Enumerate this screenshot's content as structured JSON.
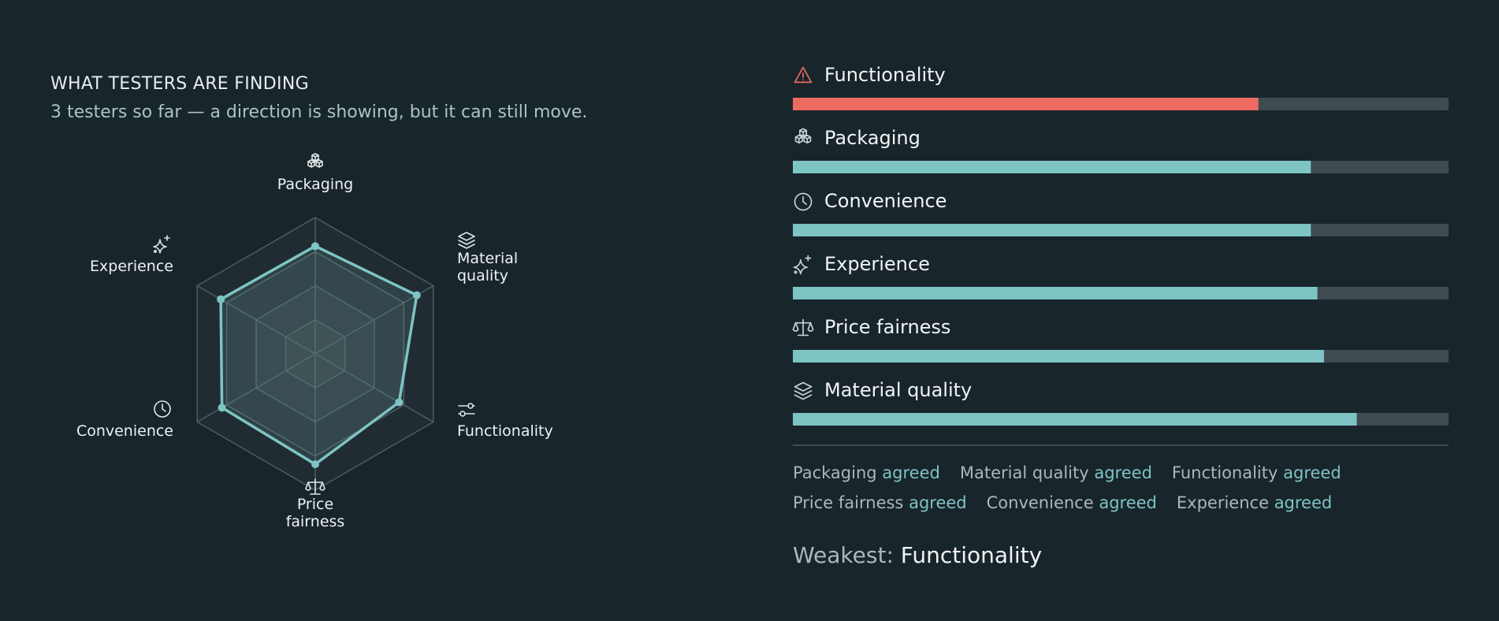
{
  "header": {
    "title": "WHAT TESTERS ARE FINDING",
    "subtitle": "3 testers so far — a direction is showing, but it can still move."
  },
  "chart_data": [
    {
      "type": "radar",
      "categories": [
        "Packaging",
        "Material quality",
        "Functionality",
        "Price fairness",
        "Convenience",
        "Experience"
      ],
      "values": [
        79,
        86,
        71,
        81,
        79,
        80
      ],
      "color": "#7ec4c4",
      "rlim": [
        0,
        100
      ],
      "rticks": [
        25,
        50,
        75,
        100
      ]
    },
    {
      "type": "hbar",
      "categories": [
        "Functionality",
        "Packaging",
        "Convenience",
        "Experience",
        "Price fairness",
        "Material quality"
      ],
      "values": [
        71,
        79,
        79,
        80,
        81,
        86
      ],
      "colors": [
        "#ee6b62",
        "#7ec4c4",
        "#7ec4c4",
        "#7ec4c4",
        "#7ec4c4",
        "#7ec4c4"
      ],
      "track_color": "#3e4b50",
      "xlim": [
        0,
        100
      ]
    }
  ],
  "agreement": [
    {
      "name": "Packaging",
      "status": "agreed"
    },
    {
      "name": "Material quality",
      "status": "agreed"
    },
    {
      "name": "Functionality",
      "status": "agreed"
    },
    {
      "name": "Price fairness",
      "status": "agreed"
    },
    {
      "name": "Convenience",
      "status": "agreed"
    },
    {
      "name": "Experience",
      "status": "agreed"
    }
  ],
  "weakest": {
    "label": "Weakest:",
    "value": "Functionality"
  }
}
